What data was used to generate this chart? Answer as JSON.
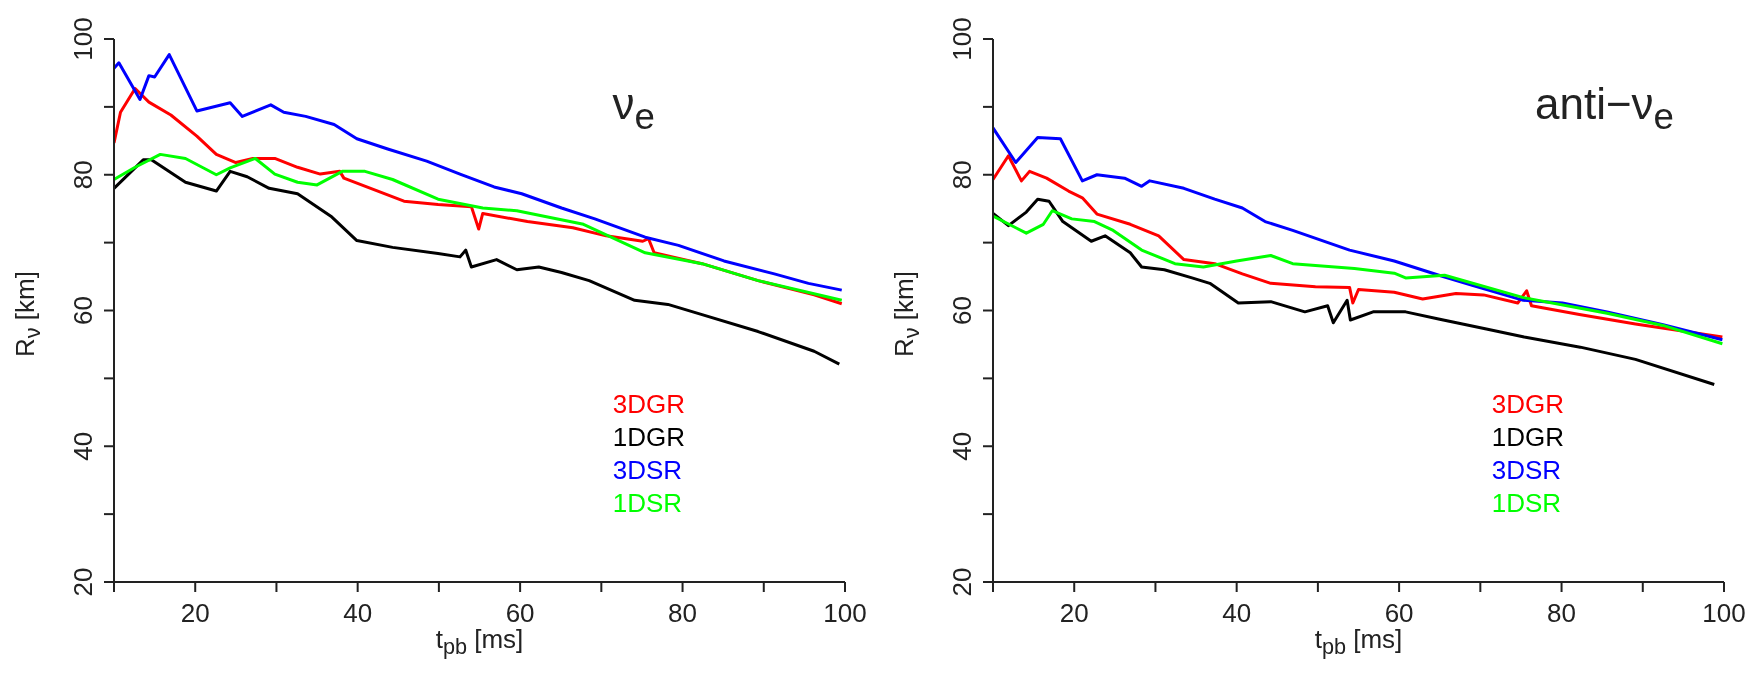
{
  "chart_data": [
    {
      "type": "line",
      "annotations": [
        "ν$_{e}$"
      ],
      "xlabel": "t$_{pb}$ [ms]",
      "ylabel": "R$_{ν}$ [km]",
      "xlim": [
        10,
        100
      ],
      "ylim": [
        20,
        100
      ],
      "xticks": [
        {
          "value": 10,
          "label": null
        },
        20,
        {
          "value": 30,
          "label": null
        },
        40,
        {
          "value": 50,
          "label": null
        },
        60,
        {
          "value": 70,
          "label": null
        },
        80,
        {
          "value": 90,
          "label": null
        },
        100
      ],
      "yticks": [
        20,
        {
          "value": 30,
          "label": null
        },
        40,
        {
          "value": 50,
          "label": null
        },
        60,
        {
          "value": 70,
          "label": null
        },
        80,
        {
          "value": 90,
          "label": null
        },
        100
      ],
      "legend": "bottom right",
      "line_style": "solid",
      "series": [
        {
          "name": "3DGR",
          "color": "#ff0000",
          "x": [
            10,
            10.8,
            12.6,
            14.3,
            17,
            20.2,
            22.6,
            25,
            27.1,
            29.8,
            32.6,
            35.4,
            37.8,
            38.3,
            41.6,
            45.7,
            49.9,
            54,
            54.9,
            55.4,
            60.9,
            66.5,
            70.6,
            75.1,
            75.8,
            76.5,
            82.4,
            89.3,
            96.2,
            99.6
          ],
          "values": [
            84.7,
            89.2,
            92.7,
            90.7,
            88.8,
            85.7,
            83,
            81.8,
            82.4,
            82.4,
            81.1,
            80.1,
            80.5,
            79.5,
            78,
            76.1,
            75.6,
            75.3,
            72,
            74.3,
            73.1,
            72.2,
            71,
            70.2,
            70.6,
            68.5,
            66.9,
            64.4,
            62.3,
            61
          ]
        },
        {
          "name": "1DGR",
          "color": "#000000",
          "x": [
            10,
            13.6,
            14.6,
            18.8,
            22.6,
            24.3,
            26.4,
            29.1,
            32.6,
            36.7,
            39.9,
            44.3,
            49.9,
            52.6,
            53.3,
            54,
            57.1,
            59.6,
            62.3,
            65.1,
            68.5,
            74.1,
            78.2,
            82.4,
            89.3,
            96.2,
            99.3
          ],
          "values": [
            78,
            82.2,
            82.2,
            78.9,
            77.6,
            80.5,
            79.7,
            78,
            77.2,
            73.9,
            70.3,
            69.3,
            68.4,
            67.9,
            68.9,
            66.4,
            67.5,
            66,
            66.4,
            65.6,
            64.4,
            61.5,
            60.9,
            59.4,
            56.9,
            54,
            52.1
          ]
        },
        {
          "name": "3DSR",
          "color": "#0000ff",
          "x": [
            10,
            10.6,
            13.2,
            14.3,
            15,
            16.8,
            20.2,
            24.3,
            25.8,
            29.3,
            30.9,
            33.6,
            37.1,
            39.9,
            43.7,
            48.5,
            52.6,
            56.8,
            60.2,
            65.1,
            69.2,
            75.4,
            79.5,
            85.1,
            91.3,
            95.5,
            99.6
          ],
          "values": [
            95.7,
            96.5,
            91.1,
            94.6,
            94.4,
            97.7,
            89.4,
            90.6,
            88.6,
            90.3,
            89.2,
            88.6,
            87.4,
            85.3,
            83.8,
            82,
            80.1,
            78.2,
            77.2,
            75.1,
            73.5,
            70.8,
            69.6,
            67.3,
            65.4,
            64,
            63
          ]
        },
        {
          "name": "1DSR",
          "color": "#00ff00",
          "x": [
            10,
            12.6,
            15.7,
            18.8,
            22.6,
            24.3,
            27.4,
            29.8,
            32.6,
            35,
            38.1,
            40.9,
            44.3,
            49.9,
            55.4,
            59.6,
            67.8,
            75.4,
            82.4,
            89.3,
            99.6
          ],
          "values": [
            79.3,
            81.1,
            83,
            82.4,
            80,
            81,
            82.4,
            80.1,
            78.9,
            78.5,
            80.5,
            80.5,
            79.3,
            76.4,
            75.1,
            74.7,
            72.7,
            68.5,
            66.9,
            64.4,
            61.5
          ]
        }
      ]
    },
    {
      "type": "line",
      "annotations": [
        "anti−ν$_{e}$"
      ],
      "xlabel": "t$_{pb}$ [ms]",
      "ylabel": "R$_{ν}$ [km]",
      "xlim": [
        10,
        100
      ],
      "ylim": [
        20,
        100
      ],
      "xticks": [
        {
          "value": 10,
          "label": null
        },
        20,
        {
          "value": 30,
          "label": null
        },
        40,
        {
          "value": 50,
          "label": null
        },
        60,
        {
          "value": 70,
          "label": null
        },
        80,
        {
          "value": 90,
          "label": null
        },
        100
      ],
      "yticks": [
        20,
        {
          "value": 30,
          "label": null
        },
        40,
        {
          "value": 50,
          "label": null
        },
        60,
        {
          "value": 70,
          "label": null
        },
        80,
        {
          "value": 90,
          "label": null
        },
        100
      ],
      "legend": "bottom right",
      "line_style": "solid",
      "series": [
        {
          "name": "3DGR",
          "color": "#ff0000",
          "x": [
            10,
            11.9,
            13.5,
            14.5,
            16.6,
            19.3,
            21,
            22.8,
            26.9,
            30.4,
            33.5,
            37.3,
            40.7,
            44.2,
            49.7,
            53.9,
            54.3,
            55,
            59.4,
            62.9,
            67,
            70.4,
            74.6,
            75.7,
            76.3,
            82.2,
            89.1,
            99.8
          ],
          "values": [
            79.3,
            82.8,
            79.1,
            80.5,
            79.5,
            77.6,
            76.6,
            74.2,
            72.7,
            71,
            67.5,
            66.9,
            65.4,
            64,
            63.5,
            63.4,
            61.1,
            63.1,
            62.7,
            61.7,
            62.5,
            62.3,
            61.1,
            62.9,
            60.7,
            59.4,
            58,
            56.1
          ]
        },
        {
          "name": "1DGR",
          "color": "#000000",
          "x": [
            10,
            11.9,
            14.1,
            15.5,
            16.9,
            18.6,
            22.1,
            23.8,
            26.9,
            28.3,
            31.1,
            34.5,
            36.7,
            40.2,
            44.2,
            48.4,
            51.2,
            51.9,
            53.6,
            54,
            56.8,
            60.8,
            65,
            70.6,
            75.4,
            82.3,
            89.1,
            98.8
          ],
          "values": [
            74.3,
            72.5,
            74.5,
            76.4,
            76.1,
            73.1,
            70.2,
            71,
            68.5,
            66.4,
            66,
            64.8,
            64,
            61.1,
            61.3,
            59.8,
            60.7,
            58.2,
            61.5,
            58.6,
            59.8,
            59.8,
            58.7,
            57.3,
            56.1,
            54.6,
            52.8,
            49.1
          ]
        },
        {
          "name": "3DSR",
          "color": "#0000ff",
          "x": [
            10,
            12.8,
            15.5,
            18.3,
            21,
            22.8,
            26.2,
            28.3,
            29.3,
            33.5,
            37.3,
            40.7,
            43.5,
            46.9,
            53.9,
            59.4,
            64.9,
            69,
            75.3,
            80.1,
            85.6,
            92.5,
            99.8
          ],
          "values": [
            86.9,
            81.8,
            85.5,
            85.3,
            79.1,
            80,
            79.5,
            78.3,
            79.1,
            78,
            76.4,
            75.1,
            73.1,
            71.8,
            68.9,
            67.3,
            65.2,
            63.7,
            61.5,
            61.1,
            59.8,
            57.9,
            55.7
          ]
        },
        {
          "name": "1DSR",
          "color": "#00ff00",
          "x": [
            10,
            14.1,
            16.2,
            17.3,
            19.7,
            22.5,
            24.8,
            28.3,
            32.4,
            35.9,
            40,
            44.2,
            46.9,
            54.5,
            59.4,
            60.8,
            65.6,
            75.3,
            85.6,
            92.5,
            99.8
          ],
          "values": [
            73.9,
            71.4,
            72.7,
            74.7,
            73.5,
            73.1,
            71.8,
            68.9,
            66.9,
            66.4,
            67.3,
            68.1,
            66.9,
            66.2,
            65.5,
            64.8,
            65.2,
            61.9,
            59.6,
            57.8,
            55.1
          ]
        }
      ]
    }
  ]
}
